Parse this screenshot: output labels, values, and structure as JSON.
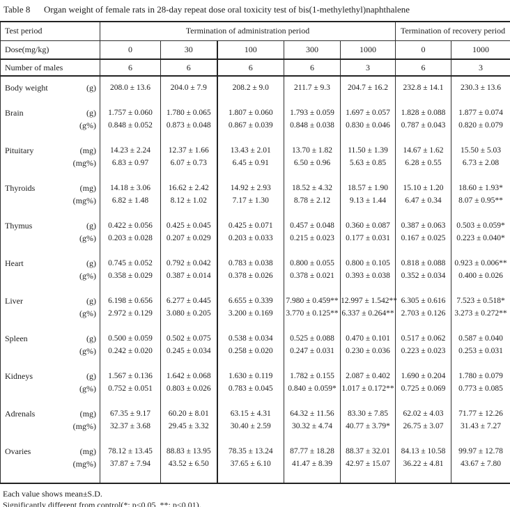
{
  "title": {
    "label": "Table 8",
    "caption": "Organ weight of female rats in 28-day repeat dose oral toxicity test of bis(1-methylethyl)naphthalene"
  },
  "table": {
    "header": {
      "test_period_label": "Test period",
      "admin_label": "Termination of administration period",
      "recovery_label": "Termination of recovery period",
      "dose_label": "Dose(mg/kg)",
      "doses": [
        "0",
        "30",
        "100",
        "300",
        "1000",
        "0",
        "1000"
      ],
      "n_label": "Number of males",
      "n_values": [
        "6",
        "6",
        "6",
        "6",
        "3",
        "6",
        "3"
      ]
    },
    "rows": [
      {
        "organ": "Body weight",
        "lines": [
          {
            "unit": "(g)",
            "values": [
              "208.0 ± 13.6",
              "204.0 ± 7.9",
              "208.2 ± 9.0",
              "211.7 ± 9.3",
              "204.7 ± 16.2",
              "232.8 ± 14.1",
              "230.3 ± 13.6"
            ]
          }
        ]
      },
      {
        "organ": "Brain",
        "lines": [
          {
            "unit": "(g)",
            "values": [
              "1.757 ± 0.060",
              "1.780 ± 0.065",
              "1.807 ± 0.060",
              "1.793 ± 0.059",
              "1.697 ± 0.057",
              "1.828 ± 0.088",
              "1.877 ± 0.074"
            ]
          },
          {
            "unit": "(g%)",
            "values": [
              "0.848 ± 0.052",
              "0.873 ± 0.048",
              "0.867 ± 0.039",
              "0.848 ± 0.038",
              "0.830 ± 0.046",
              "0.787 ± 0.043",
              "0.820 ± 0.079"
            ]
          }
        ]
      },
      {
        "organ": "Pituitary",
        "lines": [
          {
            "unit": "(mg)",
            "values": [
              "14.23 ± 2.24",
              "12.37 ± 1.66",
              "13.43 ± 2.01",
              "13.70 ± 1.82",
              "11.50 ± 1.39",
              "14.67 ± 1.62",
              "15.50 ± 5.03"
            ]
          },
          {
            "unit": "(mg%)",
            "values": [
              "6.83 ± 0.97",
              "6.07 ± 0.73",
              "6.45 ± 0.91",
              "6.50 ± 0.96",
              "5.63 ± 0.85",
              "6.28 ± 0.55",
              "6.73 ± 2.08"
            ]
          }
        ]
      },
      {
        "organ": "Thyroids",
        "lines": [
          {
            "unit": "(mg)",
            "values": [
              "14.18 ± 3.06",
              "16.62 ± 2.42",
              "14.92 ± 2.93",
              "18.52 ± 4.32",
              "18.57 ± 1.90",
              "15.10 ± 1.20",
              "18.60 ± 1.93*"
            ]
          },
          {
            "unit": "(mg%)",
            "values": [
              "6.82 ± 1.48",
              "8.12 ± 1.02",
              "7.17 ± 1.30",
              "8.78 ± 2.12",
              "9.13 ± 1.44",
              "6.47 ± 0.34",
              "8.07 ± 0.95**"
            ]
          }
        ]
      },
      {
        "organ": "Thymus",
        "lines": [
          {
            "unit": "(g)",
            "values": [
              "0.422 ± 0.056",
              "0.425 ± 0.045",
              "0.425 ± 0.071",
              "0.457 ± 0.048",
              "0.360 ± 0.087",
              "0.387 ± 0.063",
              "0.503 ± 0.059*"
            ]
          },
          {
            "unit": "(g%)",
            "values": [
              "0.203 ± 0.028",
              "0.207 ± 0.029",
              "0.203 ± 0.033",
              "0.215 ± 0.023",
              "0.177 ± 0.031",
              "0.167 ± 0.025",
              "0.223 ± 0.040*"
            ]
          }
        ]
      },
      {
        "organ": "Heart",
        "lines": [
          {
            "unit": "(g)",
            "values": [
              "0.745 ± 0.052",
              "0.792 ± 0.042",
              "0.783 ± 0.038",
              "0.800 ± 0.055",
              "0.800 ± 0.105",
              "0.818 ± 0.088",
              "0.923 ± 0.006**"
            ]
          },
          {
            "unit": "(g%)",
            "values": [
              "0.358 ± 0.029",
              "0.387 ± 0.014",
              "0.378 ± 0.026",
              "0.378 ± 0.021",
              "0.393 ± 0.038",
              "0.352 ± 0.034",
              "0.400 ± 0.026"
            ]
          }
        ]
      },
      {
        "organ": "Liver",
        "lines": [
          {
            "unit": "(g)",
            "values": [
              "6.198 ± 0.656",
              "6.277 ± 0.445",
              "6.655 ± 0.339",
              "7.980 ± 0.459**",
              "12.997 ± 1.542**",
              "6.305 ± 0.616",
              "7.523 ± 0.518*"
            ]
          },
          {
            "unit": "(g%)",
            "values": [
              "2.972 ± 0.129",
              "3.080 ± 0.205",
              "3.200 ± 0.169",
              "3.770 ± 0.125**",
              "6.337 ± 0.264**",
              "2.703 ± 0.126",
              "3.273 ± 0.272**"
            ]
          }
        ]
      },
      {
        "organ": "Spleen",
        "lines": [
          {
            "unit": "(g)",
            "values": [
              "0.500 ± 0.059",
              "0.502 ± 0.075",
              "0.538 ± 0.034",
              "0.525 ± 0.088",
              "0.470 ± 0.101",
              "0.517 ± 0.062",
              "0.587 ± 0.040"
            ]
          },
          {
            "unit": "(g%)",
            "values": [
              "0.242 ± 0.020",
              "0.245 ± 0.034",
              "0.258 ± 0.020",
              "0.247 ± 0.031",
              "0.230 ± 0.036",
              "0.223 ± 0.023",
              "0.253 ± 0.031"
            ]
          }
        ]
      },
      {
        "organ": "Kidneys",
        "lines": [
          {
            "unit": "(g)",
            "values": [
              "1.567 ± 0.136",
              "1.642 ± 0.068",
              "1.630 ± 0.119",
              "1.782 ± 0.155",
              "2.087 ± 0.402",
              "1.690 ± 0.204",
              "1.780 ± 0.079"
            ]
          },
          {
            "unit": "(g%)",
            "values": [
              "0.752 ± 0.051",
              "0.803 ± 0.026",
              "0.783 ± 0.045",
              "0.840 ± 0.059*",
              "1.017 ± 0.172**",
              "0.725 ± 0.069",
              "0.773 ± 0.085"
            ]
          }
        ]
      },
      {
        "organ": "Adrenals",
        "lines": [
          {
            "unit": "(mg)",
            "values": [
              "67.35 ± 9.17",
              "60.20 ± 8.01",
              "63.15 ± 4.31",
              "64.32 ± 11.56",
              "83.30 ± 7.85",
              "62.02 ± 4.03",
              "71.77 ± 12.26"
            ]
          },
          {
            "unit": "(mg%)",
            "values": [
              "32.37 ± 3.68",
              "29.45 ± 3.32",
              "30.40 ± 2.59",
              "30.32 ± 4.74",
              "40.77 ± 3.79*",
              "26.75 ± 3.07",
              "31.43 ± 7.27"
            ]
          }
        ]
      },
      {
        "organ": "Ovaries",
        "lines": [
          {
            "unit": "(mg)",
            "values": [
              "78.12 ± 13.45",
              "88.83 ± 13.95",
              "78.35 ± 13.24",
              "87.77 ± 18.28",
              "88.37 ± 32.01",
              "84.13 ± 10.58",
              "99.97 ± 12.78"
            ]
          },
          {
            "unit": "(mg%)",
            "values": [
              "37.87 ± 7.94",
              "43.52 ± 6.50",
              "37.65 ± 6.10",
              "41.47 ± 8.39",
              "42.97 ± 15.07",
              "36.22 ± 4.81",
              "43.67 ± 7.80"
            ]
          }
        ]
      }
    ]
  },
  "footnotes": [
    "Each value shows mean±S.D.",
    "Significantly different from control(*: p<0.05, **: p<0.01)."
  ]
}
